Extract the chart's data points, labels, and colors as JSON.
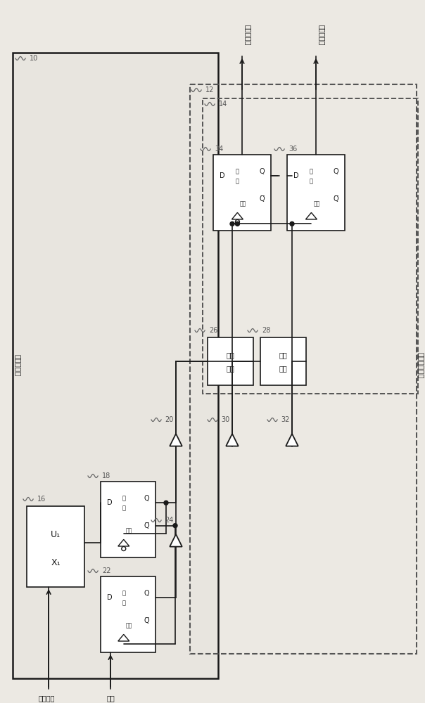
{
  "bg_color": "#ece9e3",
  "line_color": "#1a1a1a",
  "box_fill": "#ffffff",
  "fig_width": 6.04,
  "fig_height": 10.0,
  "labels": {
    "main_ic": "主集成电路",
    "slave_ic": "从属集成电路",
    "clk_interconnect": "时钟互连",
    "data_interconnect": "数据互连",
    "ref_clk": "参考时钟",
    "data_in": "数据",
    "recv_data": "接收的数据",
    "set": "设",
    "fixed": "定",
    "clear": "清除",
    "U1": "U₁",
    "X1": "X₁"
  }
}
